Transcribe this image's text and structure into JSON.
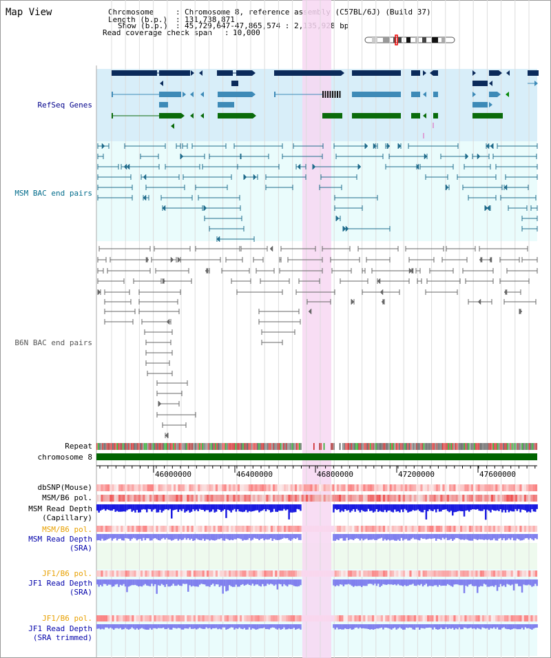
{
  "title": "Map View",
  "info": {
    "chromosome_label": "Chromosome",
    "chromosome_value": "Chromosome 8, reference assembly (C57BL/6J) (Build 37)",
    "length_label": "Length (b.p.)",
    "length_value": "131,738,871",
    "show_label": "Show (b.p.)",
    "show_value": "45,729,647-47,865,574 : 2,135,928 bp",
    "coverage_label": "Read coverage check span",
    "coverage_value": "10,000"
  },
  "tracks": {
    "refseq": "RefSeq Genes",
    "msm_bac": "MSM BAC end pairs",
    "b6n_bac": "B6N BAC end pairs",
    "repeat": "Repeat",
    "chromosome": "chromosome 8",
    "dbsnp": "dbSNP(Mouse)",
    "msm_b6_pol_1": "MSM/B6 pol.",
    "msm_depth_cap_1": "MSM Read Depth",
    "msm_depth_cap_2": "(Capillary)",
    "msm_b6_pol_2": "MSM/B6 pol.",
    "msm_depth_sra_1": "MSM Read Depth",
    "msm_depth_sra_2": "(SRA)",
    "jf1_pol_1": "JF1/B6 pol.",
    "jf1_depth_1": "JF1 Read Depth",
    "jf1_depth_2": "(SRA)",
    "jf1_pol_2": "JF1/B6 pol.",
    "jf1_trim_1": "JF1 Read Depth",
    "jf1_trim_2": "(SRA trimmed)"
  },
  "axis": {
    "ticks": [
      "46000000",
      "46400000",
      "46800000",
      "47200000",
      "47600000"
    ]
  },
  "colors": {
    "refseq_bg": "#d8eef9",
    "msm_bg": "#eafcfc",
    "highlight": "#f7d7f2",
    "chromosome_bar": "#006400",
    "gene_navy": "#0b2a5a",
    "gene_mid": "#3d8ab7",
    "gene_green": "#0a6b0a",
    "msm_bac": "#1f6b8b",
    "b6n_bac": "#666666",
    "snp_red": "#ee3333",
    "depth_blue": "#1a1ae0",
    "depth_purple": "#8080ee"
  }
}
